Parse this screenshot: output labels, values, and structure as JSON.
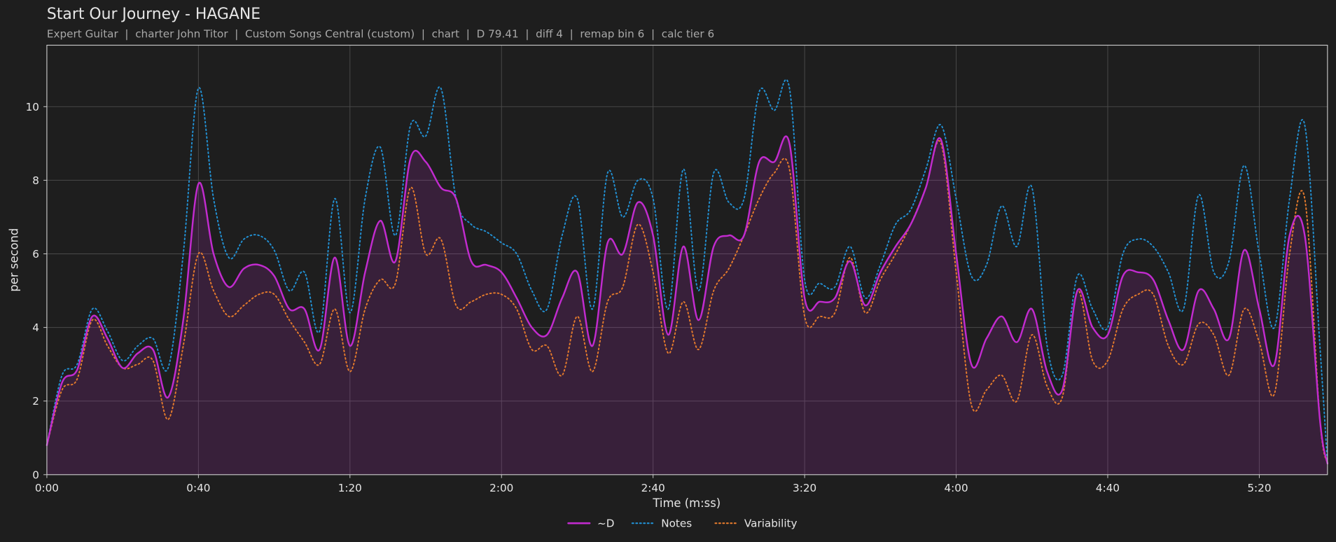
{
  "chart_data": {
    "type": "line",
    "title": "Start Our Journey - HAGANE",
    "subtitle": "Expert Guitar  |  charter John Titor  |  Custom Songs Central (custom)  |  chart  |  D 79.41  |  diff 4  |  remap bin 6  |  calc tier 6",
    "xlabel": "Time (m:ss)",
    "ylabel": "per second",
    "x": [
      0,
      4,
      8,
      12,
      16,
      20,
      24,
      28,
      32,
      36,
      40,
      44,
      48,
      52,
      56,
      60,
      64,
      68,
      72,
      76,
      80,
      84,
      88,
      92,
      96,
      100,
      104,
      108,
      112,
      116,
      120,
      124,
      128,
      132,
      136,
      140,
      144,
      148,
      152,
      156,
      160,
      164,
      168,
      172,
      176,
      180,
      184,
      188,
      192,
      196,
      200,
      204,
      208,
      212,
      216,
      220,
      224,
      228,
      232,
      236,
      240,
      244,
      248,
      252,
      256,
      260,
      264,
      268,
      272,
      276,
      280,
      284,
      288,
      292,
      296,
      300,
      304,
      308,
      312,
      316,
      320,
      324,
      328,
      332,
      336,
      338
    ],
    "series": [
      {
        "name": "~D",
        "color": "#c22bcf",
        "style": "solid",
        "fill": true,
        "values": [
          0.8,
          2.5,
          2.85,
          4.3,
          3.7,
          2.9,
          3.3,
          3.4,
          2.1,
          4.2,
          7.9,
          6.0,
          5.1,
          5.6,
          5.7,
          5.4,
          4.5,
          4.5,
          3.4,
          5.9,
          3.5,
          5.5,
          6.9,
          5.8,
          8.6,
          8.5,
          7.8,
          7.5,
          5.8,
          5.7,
          5.5,
          4.8,
          4.0,
          3.8,
          4.8,
          5.5,
          3.5,
          6.3,
          6.0,
          7.4,
          6.5,
          3.8,
          6.2,
          4.2,
          6.2,
          6.5,
          6.5,
          8.5,
          8.5,
          9.0,
          4.8,
          4.7,
          4.8,
          5.8,
          4.6,
          5.5,
          6.2,
          6.8,
          7.8,
          9.1,
          6.0,
          3.0,
          3.7,
          4.3,
          3.6,
          4.5,
          2.8,
          2.3,
          5.0,
          4.0,
          3.8,
          5.4,
          5.5,
          5.3,
          4.2,
          3.4,
          5.0,
          4.5,
          3.7,
          6.1,
          4.5,
          3.0,
          6.5,
          6.5,
          1.5,
          0.3
        ]
      },
      {
        "name": "Notes",
        "color": "#2291d4",
        "style": "dotted",
        "fill": false,
        "values": [
          0.8,
          2.7,
          3.0,
          4.5,
          3.9,
          3.1,
          3.5,
          3.7,
          2.9,
          6.0,
          10.5,
          7.5,
          5.9,
          6.4,
          6.5,
          6.1,
          5.0,
          5.5,
          3.9,
          7.5,
          4.4,
          7.5,
          8.9,
          6.5,
          9.5,
          9.2,
          10.5,
          7.5,
          6.8,
          6.6,
          6.3,
          6.0,
          5.0,
          4.5,
          6.5,
          7.5,
          4.5,
          8.2,
          7.0,
          8.0,
          7.5,
          4.5,
          8.3,
          5.0,
          8.2,
          7.4,
          7.5,
          10.4,
          9.9,
          10.5,
          5.3,
          5.2,
          5.1,
          6.2,
          4.8,
          5.7,
          6.8,
          7.2,
          8.3,
          9.5,
          7.5,
          5.4,
          5.7,
          7.3,
          6.2,
          7.8,
          3.5,
          2.7,
          5.4,
          4.5,
          4.0,
          6.0,
          6.4,
          6.2,
          5.5,
          4.5,
          7.6,
          5.5,
          5.8,
          8.4,
          6.0,
          4.0,
          7.5,
          9.5,
          3.5,
          0.3
        ]
      },
      {
        "name": "Variability",
        "color": "#e57b2c",
        "style": "dotted",
        "fill": false,
        "values": [
          0.8,
          2.3,
          2.6,
          4.2,
          3.5,
          2.9,
          3.0,
          3.1,
          1.5,
          3.5,
          6.0,
          5.0,
          4.3,
          4.6,
          4.9,
          4.9,
          4.2,
          3.6,
          3.0,
          4.5,
          2.8,
          4.5,
          5.3,
          5.2,
          7.8,
          6.0,
          6.4,
          4.6,
          4.7,
          4.9,
          4.9,
          4.5,
          3.4,
          3.5,
          2.7,
          4.3,
          2.8,
          4.7,
          5.1,
          6.8,
          5.5,
          3.3,
          4.7,
          3.4,
          5.0,
          5.6,
          6.5,
          7.5,
          8.2,
          8.3,
          4.3,
          4.3,
          4.4,
          5.9,
          4.4,
          5.3,
          6.0,
          6.8,
          7.8,
          9.0,
          5.5,
          1.9,
          2.3,
          2.7,
          2.0,
          3.8,
          2.4,
          2.1,
          5.0,
          3.1,
          3.1,
          4.5,
          4.9,
          4.9,
          3.5,
          3.0,
          4.1,
          3.8,
          2.7,
          4.5,
          3.6,
          2.2,
          6.0,
          7.5,
          1.5,
          0.3
        ]
      }
    ],
    "xlim": [
      0,
      338
    ],
    "xticks": [
      {
        "value": 0,
        "label": "0:00"
      },
      {
        "value": 40,
        "label": "0:40"
      },
      {
        "value": 80,
        "label": "1:20"
      },
      {
        "value": 120,
        "label": "2:00"
      },
      {
        "value": 160,
        "label": "2:40"
      },
      {
        "value": 200,
        "label": "3:20"
      },
      {
        "value": 240,
        "label": "4:00"
      },
      {
        "value": 280,
        "label": "4:40"
      },
      {
        "value": 320,
        "label": "5:20"
      }
    ],
    "ylim": [
      0,
      11.67
    ],
    "yticks": [
      0,
      2,
      4,
      6,
      8,
      10
    ],
    "grid": true,
    "legend": "bottom"
  }
}
